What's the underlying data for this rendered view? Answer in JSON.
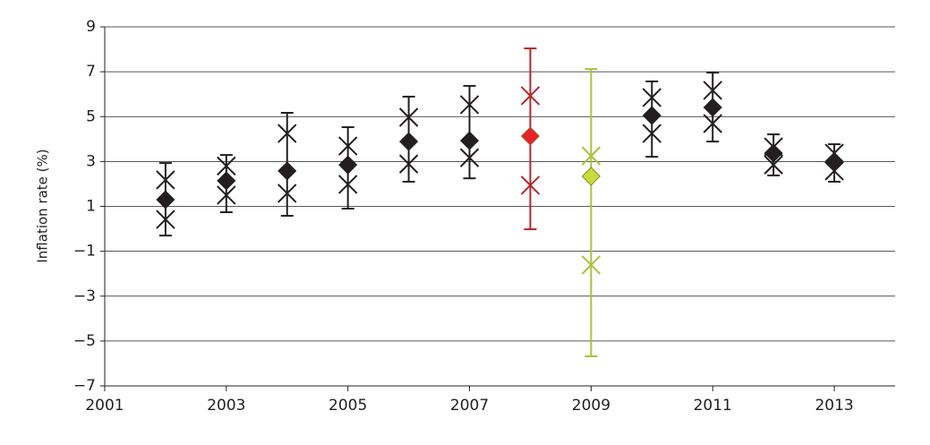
{
  "chart_data": {
    "type": "errorbar",
    "y_label": "Inflation rate (%)",
    "x": [
      2002,
      2003,
      2004,
      2005,
      2006,
      2007,
      2008,
      2009,
      2010,
      2011,
      2012,
      2013
    ],
    "values": [
      1.3,
      2.14,
      2.58,
      2.85,
      3.89,
      3.93,
      4.13,
      2.34,
      5.05,
      5.41,
      3.37,
      2.97
    ],
    "low": [
      -0.3,
      0.74,
      0.58,
      0.9,
      2.1,
      2.25,
      -0.02,
      -5.68,
      3.21,
      3.89,
      2.38,
      2.1
    ],
    "high": [
      2.93,
      3.29,
      5.17,
      4.53,
      5.89,
      6.37,
      8.04,
      7.12,
      6.57,
      6.96,
      4.21,
      3.77
    ],
    "marks_upper": [
      2.18,
      2.8,
      4.25,
      3.69,
      4.97,
      5.53,
      5.93,
      3.25,
      5.85,
      6.17,
      3.65,
      3.37
    ],
    "marks_lower": [
      0.42,
      1.5,
      1.58,
      1.98,
      2.89,
      3.17,
      1.94,
      -1.61,
      4.25,
      4.69,
      2.85,
      2.58
    ],
    "colors": [
      "#231f20",
      "#231f20",
      "#231f20",
      "#231f20",
      "#231f20",
      "#231f20",
      "#e8202a",
      "#c5dc3c",
      "#231f20",
      "#231f20",
      "#231f20",
      "#231f20"
    ],
    "bar_colors": [
      "#231f20",
      "#231f20",
      "#231f20",
      "#231f20",
      "#231f20",
      "#231f20",
      "#b3262c",
      "#a9c23a",
      "#231f20",
      "#231f20",
      "#231f20",
      "#231f20"
    ],
    "xlim": [
      2001,
      2014
    ],
    "xticks": [
      2001,
      2003,
      2005,
      2007,
      2009,
      2011,
      2013
    ],
    "ylim": [
      -7,
      9
    ],
    "yticks": [
      {
        "value": -7,
        "label": "−7"
      },
      {
        "value": -5,
        "label": "−5"
      },
      {
        "value": -3,
        "label": "−3"
      },
      {
        "value": -1,
        "label": "−1"
      },
      1,
      3,
      5,
      7,
      9
    ],
    "grid": true
  }
}
